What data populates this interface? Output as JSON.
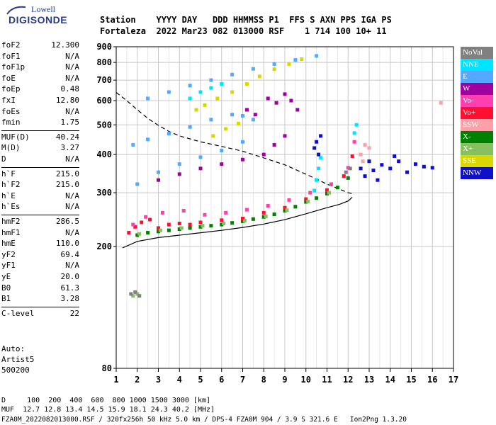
{
  "logo": {
    "line1": "Lowell",
    "line2": "DIGISONDE"
  },
  "header": {
    "row1": "Station    YYYY DAY   DDD HHMMSS P1  FFS S AXN PPS IGA PS",
    "row2": "Fortaleza  2022 Mar23 082 013000 RSF    1 714 100 10+ 11"
  },
  "params": [
    {
      "name": "foF2",
      "value": "12.300"
    },
    {
      "name": "foF1",
      "value": "N/A"
    },
    {
      "name": "foF1p",
      "value": "N/A"
    },
    {
      "name": "foE",
      "value": "N/A"
    },
    {
      "name": "foEp",
      "value": "0.48"
    },
    {
      "name": "fxI",
      "value": "12.80"
    },
    {
      "name": "foEs",
      "value": "N/A"
    },
    {
      "name": "fmin",
      "value": "1.75"
    },
    {
      "name": "MUF(D)",
      "value": "40.24"
    },
    {
      "name": "M(D)",
      "value": "3.27"
    },
    {
      "name": "D",
      "value": "N/A"
    },
    {
      "name": "h`F",
      "value": "215.0"
    },
    {
      "name": "h`F2",
      "value": "215.0"
    },
    {
      "name": "h`E",
      "value": "N/A"
    },
    {
      "name": "h`Es",
      "value": "N/A"
    },
    {
      "name": "hmF2",
      "value": "286.5"
    },
    {
      "name": "hmF1",
      "value": "N/A"
    },
    {
      "name": "hmE",
      "value": "110.0"
    },
    {
      "name": "yF2",
      "value": "69.4"
    },
    {
      "name": "yF1",
      "value": "N/A"
    },
    {
      "name": "yE",
      "value": "20.0"
    },
    {
      "name": "B0",
      "value": "61.3"
    },
    {
      "name": "B1",
      "value": "3.28"
    },
    {
      "name": "C-level",
      "value": "22"
    }
  ],
  "auto": {
    "line1": "Auto:",
    "line2": "Artist5",
    "line3": "500200"
  },
  "legend": [
    {
      "label": "NoVal",
      "color": "#808080"
    },
    {
      "label": "NNE",
      "color": "#00e5ff"
    },
    {
      "label": "E",
      "color": "#55a8ff"
    },
    {
      "label": "W",
      "color": "#a000a0"
    },
    {
      "label": "Vo-",
      "color": "#ff3fb0"
    },
    {
      "label": "Vo+",
      "color": "#ff1030"
    },
    {
      "label": "SSW",
      "color": "#ffa0a8"
    },
    {
      "label": "X-",
      "color": "#008000"
    },
    {
      "label": "X+",
      "color": "#88c060"
    },
    {
      "label": "SSE",
      "color": "#d8d800"
    },
    {
      "label": "NNW",
      "color": "#1010c8"
    }
  ],
  "footer": {
    "d_row": "D     100  200  400  600  800 1000 1500 3000 [km]",
    "muf_row": "MUF  12.7 12.8 13.4 14.5 15.9 18.1 24.3 40.2 [MHz]",
    "info_row": "FZA0M_2022082013000.RSF / 320fx256h 50 kHz 5.0 km / DPS-4 FZA0M 904 / 3.9 S 321.6 E   Ion2Png 1.3.20"
  },
  "chart_data": {
    "type": "scatter",
    "title": "",
    "xlabel": "",
    "ylabel": "",
    "xlim": [
      1,
      17
    ],
    "ylim": [
      80,
      900
    ],
    "yscale": "log",
    "grid": true,
    "legend_position": "right",
    "x_ticks": [
      1,
      2,
      3,
      4,
      5,
      6,
      7,
      8,
      9,
      10,
      11,
      12,
      13,
      14,
      15,
      16,
      17
    ],
    "y_ticks": [
      80,
      200,
      300,
      400,
      500,
      600,
      700,
      800,
      900
    ],
    "series": [
      {
        "name": "X-",
        "color": "#008000",
        "points": [
          [
            2.0,
            218
          ],
          [
            2.5,
            222
          ],
          [
            3.0,
            224
          ],
          [
            3.5,
            226
          ],
          [
            4.0,
            228
          ],
          [
            4.5,
            230
          ],
          [
            5.0,
            232
          ],
          [
            5.5,
            234
          ],
          [
            6.0,
            236
          ],
          [
            6.5,
            239
          ],
          [
            7.0,
            242
          ],
          [
            7.5,
            246
          ],
          [
            8.0,
            250
          ],
          [
            8.5,
            255
          ],
          [
            9.0,
            262
          ],
          [
            9.5,
            270
          ],
          [
            10.0,
            280
          ],
          [
            10.5,
            288
          ],
          [
            11.0,
            298
          ],
          [
            11.5,
            312
          ],
          [
            12.0,
            335
          ]
        ]
      },
      {
        "name": "Vo+",
        "color": "#ff1030",
        "points": [
          [
            1.6,
            222
          ],
          [
            1.9,
            232
          ],
          [
            2.2,
            240
          ],
          [
            2.6,
            245
          ],
          [
            3.0,
            230
          ],
          [
            3.5,
            236
          ],
          [
            4.0,
            238
          ],
          [
            4.5,
            236
          ],
          [
            5.0,
            240
          ],
          [
            6.0,
            244
          ],
          [
            7.0,
            247
          ],
          [
            8.0,
            258
          ],
          [
            9.0,
            268
          ],
          [
            10.0,
            286
          ],
          [
            11.0,
            306
          ],
          [
            11.8,
            340
          ],
          [
            12.2,
            395
          ]
        ]
      },
      {
        "name": "Vo-",
        "color": "#ff3fb0",
        "points": [
          [
            1.8,
            236
          ],
          [
            2.4,
            250
          ],
          [
            3.2,
            258
          ],
          [
            4.2,
            262
          ],
          [
            5.2,
            254
          ],
          [
            6.2,
            258
          ],
          [
            7.2,
            264
          ],
          [
            8.2,
            272
          ],
          [
            9.2,
            284
          ],
          [
            10.2,
            300
          ],
          [
            11.2,
            320
          ],
          [
            12.0,
            362
          ],
          [
            12.3,
            440
          ]
        ]
      },
      {
        "name": "E",
        "color": "#55a8ff",
        "points": [
          [
            1.8,
            430
          ],
          [
            2.5,
            448
          ],
          [
            3.5,
            468
          ],
          [
            4.5,
            492
          ],
          [
            5.5,
            520
          ],
          [
            6.5,
            540
          ],
          [
            7.0,
            535
          ],
          [
            7.5,
            520
          ],
          [
            2.5,
            610
          ],
          [
            3.5,
            640
          ],
          [
            4.5,
            672
          ],
          [
            5.5,
            700
          ],
          [
            6.5,
            730
          ],
          [
            7.5,
            762
          ],
          [
            8.5,
            790
          ],
          [
            9.5,
            815
          ],
          [
            10.5,
            840
          ],
          [
            2.0,
            320
          ],
          [
            3.0,
            350
          ],
          [
            4.0,
            372
          ],
          [
            5.0,
            392
          ],
          [
            6.0,
            412
          ],
          [
            7.0,
            440
          ]
        ]
      },
      {
        "name": "NNE",
        "color": "#00e5ff",
        "points": [
          [
            10.5,
            330
          ],
          [
            10.6,
            360
          ],
          [
            10.7,
            390
          ],
          [
            10.4,
            305
          ],
          [
            12.3,
            470
          ],
          [
            12.4,
            500
          ],
          [
            4.5,
            610
          ],
          [
            5.0,
            640
          ],
          [
            5.5,
            660
          ],
          [
            6.0,
            680
          ]
        ]
      },
      {
        "name": "W",
        "color": "#a000a0",
        "points": [
          [
            3.0,
            330
          ],
          [
            4.0,
            345
          ],
          [
            5.0,
            360
          ],
          [
            6.0,
            372
          ],
          [
            7.0,
            385
          ],
          [
            8.0,
            400
          ],
          [
            8.5,
            430
          ],
          [
            9.0,
            460
          ],
          [
            8.2,
            610
          ],
          [
            8.6,
            590
          ],
          [
            9.0,
            630
          ],
          [
            9.3,
            600
          ],
          [
            9.6,
            560
          ],
          [
            7.2,
            560
          ],
          [
            7.6,
            540
          ]
        ]
      },
      {
        "name": "NNW",
        "color": "#1010c8",
        "points": [
          [
            10.4,
            420
          ],
          [
            10.5,
            440
          ],
          [
            10.6,
            400
          ],
          [
            10.7,
            460
          ],
          [
            12.8,
            340
          ],
          [
            13.2,
            355
          ],
          [
            13.6,
            370
          ],
          [
            14.0,
            360
          ],
          [
            14.4,
            380
          ],
          [
            14.8,
            350
          ],
          [
            15.2,
            372
          ],
          [
            15.6,
            365
          ],
          [
            16.0,
            362
          ],
          [
            13.0,
            380
          ],
          [
            13.4,
            330
          ],
          [
            14.2,
            395
          ],
          [
            12.6,
            360
          ]
        ]
      },
      {
        "name": "SSE",
        "color": "#d8d800",
        "points": [
          [
            4.8,
            560
          ],
          [
            5.2,
            580
          ],
          [
            5.8,
            610
          ],
          [
            6.5,
            640
          ],
          [
            7.2,
            680
          ],
          [
            7.8,
            720
          ],
          [
            8.5,
            760
          ],
          [
            9.2,
            790
          ],
          [
            9.8,
            820
          ],
          [
            5.6,
            460
          ],
          [
            6.2,
            485
          ],
          [
            6.8,
            505
          ]
        ]
      },
      {
        "name": "SSW",
        "color": "#ffa0a8",
        "points": [
          [
            12.6,
            400
          ],
          [
            12.8,
            430
          ],
          [
            13.0,
            420
          ],
          [
            12.7,
            380
          ],
          [
            16.4,
            590
          ]
        ]
      },
      {
        "name": "X+",
        "color": "#88c060",
        "points": [
          [
            2.1,
            220
          ],
          [
            3.1,
            226
          ],
          [
            4.1,
            230
          ],
          [
            5.1,
            234
          ],
          [
            6.1,
            238
          ],
          [
            7.1,
            243
          ],
          [
            8.1,
            251
          ],
          [
            9.1,
            263
          ],
          [
            10.1,
            281
          ],
          [
            11.1,
            300
          ],
          [
            1.8,
            138
          ],
          [
            2.0,
            140
          ]
        ]
      },
      {
        "name": "NoVal",
        "color": "#808080",
        "points": [
          [
            1.7,
            140
          ],
          [
            1.9,
            142
          ],
          [
            2.1,
            138
          ],
          [
            11.9,
            350
          ],
          [
            12.1,
            360
          ]
        ]
      }
    ],
    "curves": [
      {
        "style": "solid",
        "points": [
          [
            1.3,
            198
          ],
          [
            2.0,
            208
          ],
          [
            3.0,
            214
          ],
          [
            4.0,
            218
          ],
          [
            5.0,
            222
          ],
          [
            6.0,
            226
          ],
          [
            7.0,
            231
          ],
          [
            8.0,
            237
          ],
          [
            9.0,
            245
          ],
          [
            10.0,
            256
          ],
          [
            11.0,
            268
          ],
          [
            11.6,
            275
          ],
          [
            12.0,
            282
          ],
          [
            12.2,
            290
          ]
        ]
      },
      {
        "style": "dashed",
        "points": [
          [
            1.0,
            638
          ],
          [
            1.5,
            600
          ],
          [
            2.0,
            560
          ],
          [
            2.5,
            525
          ],
          [
            3.0,
            498
          ],
          [
            3.5,
            476
          ],
          [
            4.0,
            460
          ],
          [
            5.0,
            440
          ],
          [
            6.0,
            425
          ],
          [
            7.0,
            410
          ],
          [
            8.0,
            390
          ],
          [
            9.0,
            370
          ],
          [
            10.0,
            345
          ],
          [
            10.6,
            330
          ],
          [
            11.0,
            320
          ],
          [
            11.4,
            312
          ],
          [
            12.0,
            300
          ],
          [
            12.2,
            298
          ]
        ]
      }
    ]
  }
}
